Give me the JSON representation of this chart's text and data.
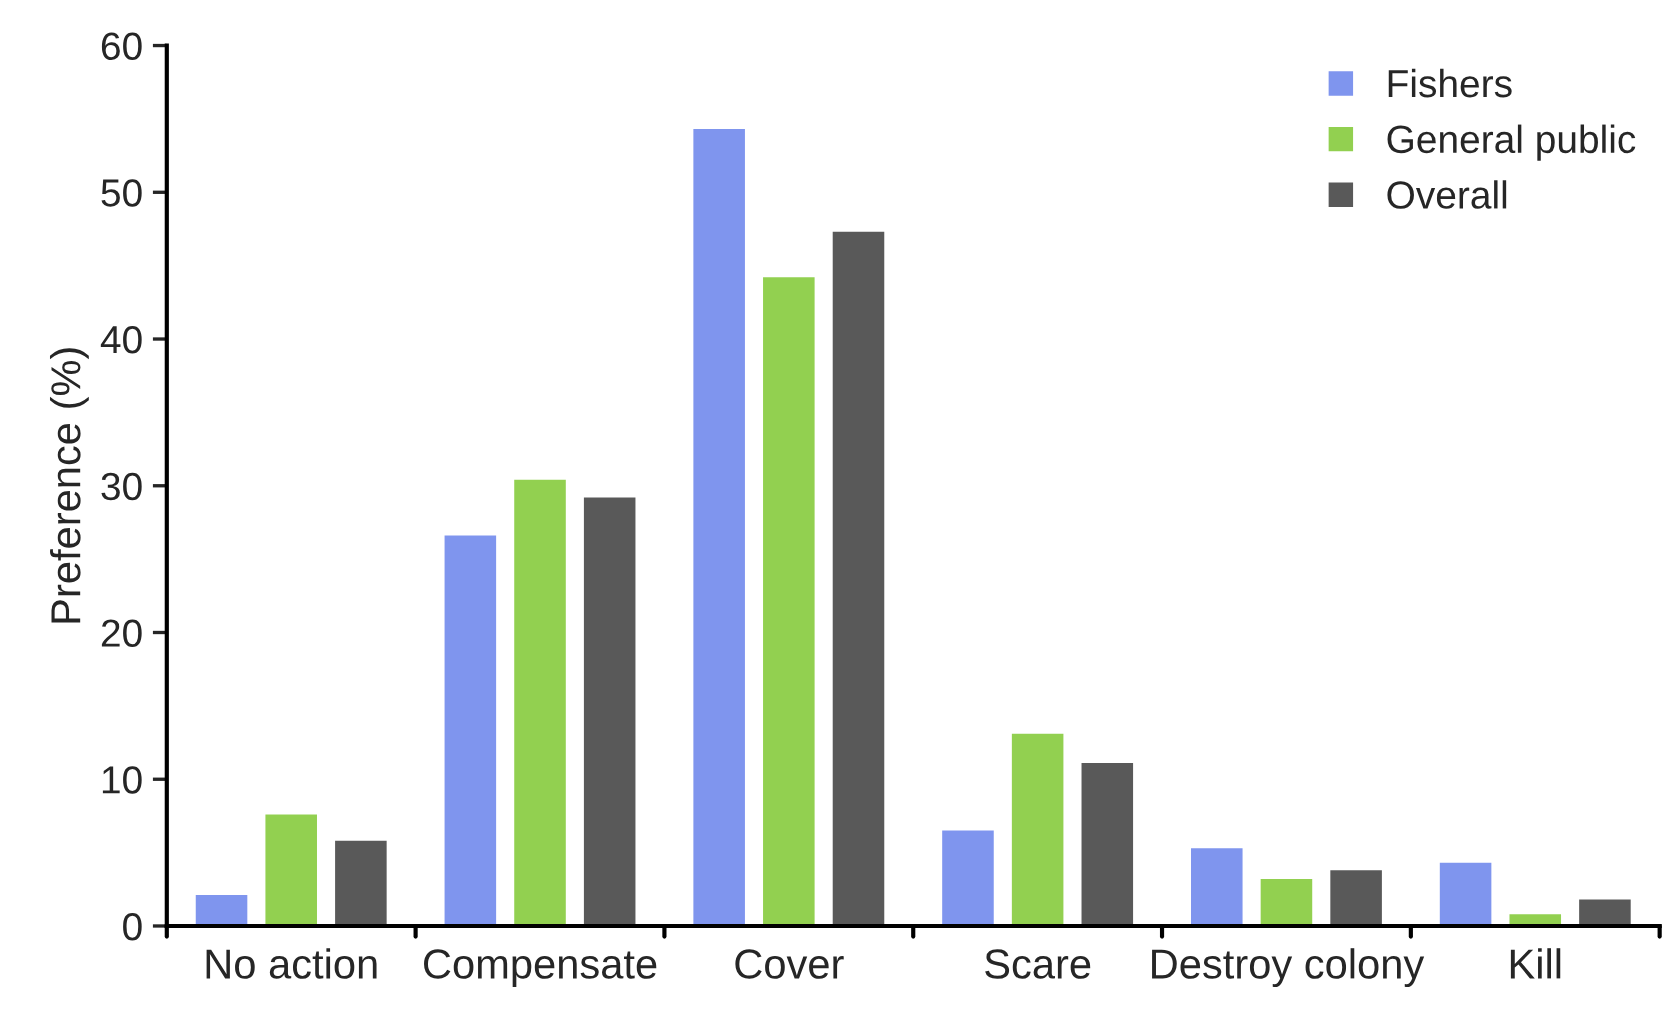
{
  "chart_data": {
    "type": "bar",
    "ylabel": "Preference (%)",
    "categories": [
      "No action",
      "Compensate",
      "Cover",
      "Scare",
      "Destroy colony",
      "Kill"
    ],
    "series": [
      {
        "name": "Fishers",
        "color": "#7f95ee",
        "values": [
          2.2,
          26.7,
          54.4,
          6.6,
          5.4,
          4.4
        ]
      },
      {
        "name": "General public",
        "color": "#92d050",
        "values": [
          7.7,
          30.5,
          44.3,
          13.2,
          3.3,
          0.9
        ]
      },
      {
        "name": "Overall",
        "color": "#595959",
        "values": [
          5.9,
          29.3,
          47.4,
          11.2,
          3.9,
          1.9
        ]
      }
    ],
    "ylim": [
      0,
      60
    ],
    "yticks": [
      0,
      10,
      20,
      30,
      40,
      50,
      60
    ],
    "grid": false,
    "legend": "top right"
  }
}
